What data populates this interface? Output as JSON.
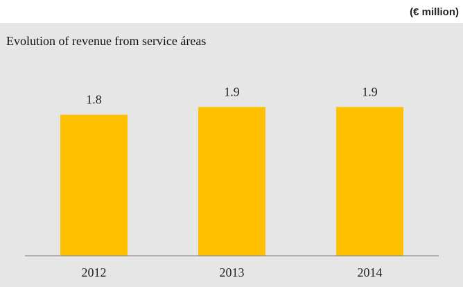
{
  "unit_note": "(€ million)",
  "chart_data": {
    "type": "bar",
    "title": "Evolution of revenue from service áreas",
    "categories": [
      "2012",
      "2013",
      "2014"
    ],
    "values": [
      1.8,
      1.9,
      1.9
    ],
    "value_labels": [
      "1.8",
      "1.9",
      "1.9"
    ],
    "xlabel": "",
    "ylabel": "",
    "ylim": [
      0,
      2.1
    ],
    "grid": false,
    "legend": "none",
    "bar_color": "#ffc000",
    "background_color": "#e6e6e6",
    "axis_color": "#7f7f7f"
  }
}
